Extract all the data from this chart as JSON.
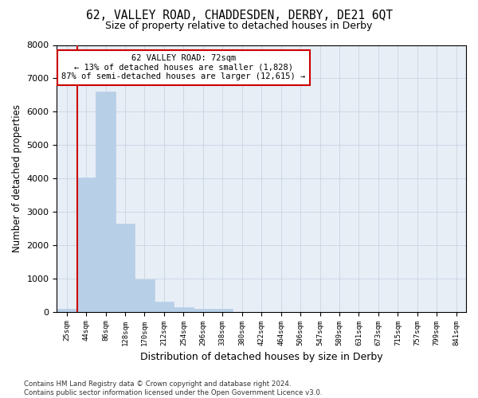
{
  "title": "62, VALLEY ROAD, CHADDESDEN, DERBY, DE21 6QT",
  "subtitle": "Size of property relative to detached houses in Derby",
  "xlabel": "Distribution of detached houses by size in Derby",
  "ylabel": "Number of detached properties",
  "bin_labels": [
    "25sqm",
    "44sqm",
    "86sqm",
    "128sqm",
    "170sqm",
    "212sqm",
    "254sqm",
    "296sqm",
    "338sqm",
    "380sqm",
    "422sqm",
    "464sqm",
    "506sqm",
    "547sqm",
    "589sqm",
    "631sqm",
    "673sqm",
    "715sqm",
    "757sqm",
    "799sqm",
    "841sqm"
  ],
  "values": [
    80,
    4020,
    6600,
    2650,
    960,
    300,
    130,
    95,
    80,
    0,
    0,
    0,
    0,
    0,
    0,
    0,
    0,
    0,
    0,
    0,
    0
  ],
  "bar_color": "#b8cfe8",
  "bar_edge_color": "#b8cfe8",
  "grid_color": "#c8d4e4",
  "background_color": "#e8eef6",
  "property_line_color": "#cc0000",
  "property_line_x": 0.54,
  "annotation_line1": "62 VALLEY ROAD: 72sqm",
  "annotation_line2": "← 13% of detached houses are smaller (1,828)",
  "annotation_line3": "87% of semi-detached houses are larger (12,615) →",
  "annotation_box_color": "#ffffff",
  "annotation_box_edge": "#cc0000",
  "footer_text": "Contains HM Land Registry data © Crown copyright and database right 2024.\nContains public sector information licensed under the Open Government Licence v3.0.",
  "ylim": [
    0,
    8000
  ],
  "yticks": [
    0,
    1000,
    2000,
    3000,
    4000,
    5000,
    6000,
    7000,
    8000
  ]
}
